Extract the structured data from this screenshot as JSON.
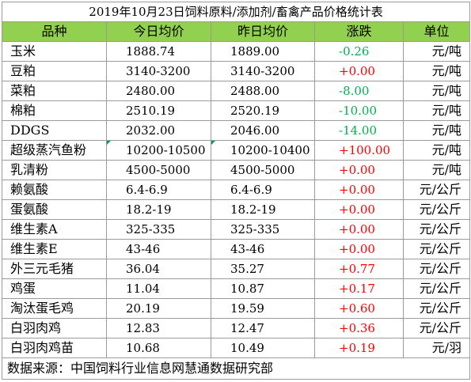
{
  "title": "2019年10月23日饲料原料/添加剂/畜禽产品价格统计表",
  "headers": {
    "name": "品种",
    "today": "今日均价",
    "yesterday": "昨日均价",
    "change": "涨跌",
    "unit": "单位"
  },
  "rows": [
    {
      "name": "玉米",
      "today": "1888.74",
      "yesterday": "1889.00",
      "change": "-0.26",
      "direction": "down",
      "unit": "元/吨"
    },
    {
      "name": "豆粕",
      "today": "3140-3200",
      "yesterday": "3140-3200",
      "change": "+0.00",
      "direction": "up",
      "unit": "元/吨"
    },
    {
      "name": "菜粕",
      "today": "2480.00",
      "yesterday": "2488.00",
      "change": "-8.00",
      "direction": "down",
      "unit": "元/吨"
    },
    {
      "name": "棉粕",
      "today": "2510.19",
      "yesterday": "2520.19",
      "change": "-10.00",
      "direction": "down",
      "unit": "元/吨"
    },
    {
      "name": "DDGS",
      "today": "2032.00",
      "yesterday": "2046.00",
      "change": "-14.00",
      "direction": "down",
      "unit": "元/吨"
    },
    {
      "name": "超级蒸汽鱼粉",
      "today": "10200-10500",
      "yesterday": "10200-10400",
      "change": "+100.00",
      "direction": "up",
      "unit": "元/吨"
    },
    {
      "name": "乳清粉",
      "today": "4500-5000",
      "yesterday": "4500-5000",
      "change": "+0.00",
      "direction": "up",
      "unit": "元/吨"
    },
    {
      "name": "赖氨酸",
      "today": "6.4-6.9",
      "yesterday": "6.4-6.9",
      "change": "+0.00",
      "direction": "up",
      "unit": "元/公斤"
    },
    {
      "name": "蛋氨酸",
      "today": "18.2-19",
      "yesterday": "18.2-19",
      "change": "+0.00",
      "direction": "up",
      "unit": "元/公斤"
    },
    {
      "name": "维生素A",
      "today": "325-335",
      "yesterday": "325-335",
      "change": "+0.00",
      "direction": "up",
      "unit": "元/公斤"
    },
    {
      "name": "维生素E",
      "today": "43-46",
      "yesterday": "43-46",
      "change": "+0.00",
      "direction": "up",
      "unit": "元/公斤"
    },
    {
      "name": "外三元毛猪",
      "today": "36.04",
      "yesterday": "35.27",
      "change": "+0.77",
      "direction": "up",
      "unit": "元/公斤"
    },
    {
      "name": "鸡蛋",
      "today": "11.04",
      "yesterday": "10.87",
      "change": "+0.17",
      "direction": "up",
      "unit": "元/公斤"
    },
    {
      "name": "淘汰蛋毛鸡",
      "today": "20.19",
      "yesterday": "19.59",
      "change": "+0.60",
      "direction": "up",
      "unit": "元/公斤"
    },
    {
      "name": "白羽肉鸡",
      "today": "12.83",
      "yesterday": "12.47",
      "change": "+0.36",
      "direction": "up",
      "unit": "元/公斤"
    },
    {
      "name": "白羽肉鸡苗",
      "today": "10.68",
      "yesterday": "10.49",
      "change": "+0.19",
      "direction": "up",
      "unit": "元/羽"
    }
  ],
  "source": "数据来源：中国饲料行业信息网慧通数据研究部",
  "colors": {
    "header_bg": "#92d050",
    "up": "#ff0000",
    "down": "#00b050"
  }
}
